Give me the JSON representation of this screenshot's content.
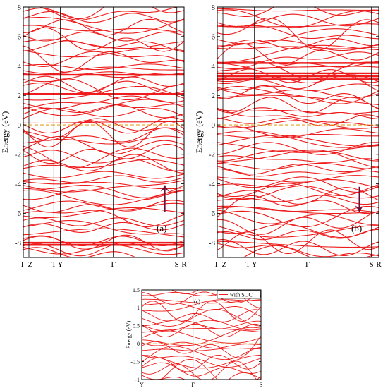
{
  "chart_data": [
    {
      "type": "line",
      "panel_label": "(a)",
      "ylabel": "Energy (eV)",
      "ylim": [
        -9,
        8
      ],
      "yticks": [
        "-8",
        "-6",
        "-4",
        "-2",
        "0",
        "2",
        "4",
        "6",
        "8"
      ],
      "yticks_values": [
        -8,
        -6,
        -4,
        -2,
        0,
        2,
        4,
        6,
        8
      ],
      "k_points": [
        "Γ",
        "Z",
        "T",
        "Y",
        "Γ",
        "S",
        "R"
      ],
      "k_positions": [
        0,
        0.035,
        0.19,
        0.23,
        0.56,
        0.955,
        1.0
      ],
      "fermi_level": 0,
      "arrow": {
        "direction": "up",
        "k": 0.88,
        "from": -5.9,
        "to": -4.1,
        "color": "#6b0f3a"
      },
      "line_color": "#ee1c1c",
      "fermi_color": "#e0a020",
      "grid": false
    },
    {
      "type": "line",
      "panel_label": "(b)",
      "ylabel": "Energy (eV)",
      "ylim": [
        -9,
        8
      ],
      "yticks": [
        "-8",
        "-6",
        "-4",
        "-2",
        "0",
        "2",
        "4",
        "6",
        "8"
      ],
      "yticks_values": [
        -8,
        -6,
        -4,
        -2,
        0,
        2,
        4,
        6,
        8
      ],
      "k_points": [
        "Γ",
        "Z",
        "T",
        "Y",
        "Γ",
        "S",
        "R"
      ],
      "k_positions": [
        0,
        0.035,
        0.19,
        0.23,
        0.56,
        0.955,
        1.0
      ],
      "fermi_level": 0,
      "arrow": {
        "direction": "down",
        "k": 0.88,
        "from": -4.2,
        "to": -5.9,
        "color": "#6b0f3a"
      },
      "line_color": "#ee1c1c",
      "fermi_color": "#e0a020",
      "grid": false
    },
    {
      "type": "line",
      "panel_label": "(c)",
      "ylabel": "Energy (eV)",
      "ylim": [
        -1,
        1.5
      ],
      "yticks": [
        "-1",
        "-0.5",
        "0",
        "0.5",
        "1",
        "1.5"
      ],
      "yticks_values": [
        -1,
        -0.5,
        0,
        0.5,
        1,
        1.5
      ],
      "k_points": [
        "Y",
        "Γ",
        "S"
      ],
      "k_positions": [
        0,
        0.43,
        1.0
      ],
      "fermi_level": 0,
      "legend": "with SOC",
      "legend_position": "top-right",
      "line_color": "#ee1c1c",
      "fermi_color": "#e0a020",
      "grid": false
    }
  ]
}
